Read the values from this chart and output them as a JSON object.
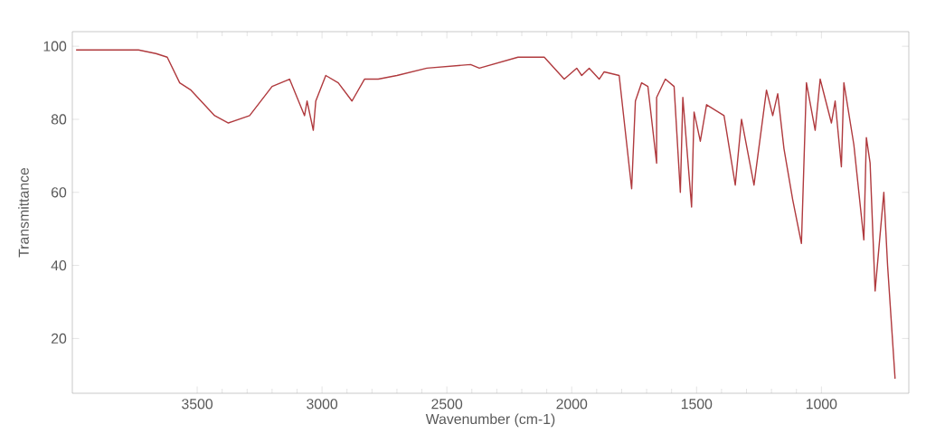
{
  "chart_data": {
    "type": "line",
    "xlabel": "Wavenumber (cm-1)",
    "ylabel": "Transmittance",
    "xlim": [
      4000,
      650
    ],
    "ylim": [
      5,
      104
    ],
    "xticks": [
      3500,
      3000,
      2500,
      2000,
      1500,
      1000
    ],
    "yticks": [
      20,
      40,
      60,
      80,
      100
    ],
    "grid": false,
    "line_style": "solid",
    "series": [
      {
        "color": "#b03a3e",
        "x": [
          3985,
          3735,
          3665,
          3620,
          3570,
          3525,
          3430,
          3375,
          3290,
          3200,
          3130,
          3100,
          3070,
          3060,
          3035,
          3025,
          2985,
          2935,
          2880,
          2830,
          2775,
          2700,
          2580,
          2405,
          2370,
          2215,
          2110,
          2030,
          1980,
          1960,
          1930,
          1890,
          1870,
          1810,
          1760,
          1745,
          1720,
          1695,
          1660,
          1660,
          1625,
          1590,
          1565,
          1555,
          1520,
          1510,
          1485,
          1460,
          1390,
          1345,
          1320,
          1270,
          1220,
          1195,
          1175,
          1150,
          1115,
          1080,
          1060,
          1025,
          1005,
          960,
          945,
          920,
          910,
          870,
          830,
          820,
          805,
          785,
          750,
          735,
          705
        ],
        "values": [
          99,
          99,
          98,
          97,
          90,
          88,
          81,
          79,
          81,
          89,
          91,
          86,
          81,
          85,
          77,
          85,
          92,
          90,
          85,
          91,
          91,
          92,
          94,
          95,
          94,
          97,
          97,
          91,
          94,
          92,
          94,
          91,
          93,
          92,
          61,
          85,
          90,
          89,
          68,
          86,
          91,
          89,
          60,
          86,
          56,
          82,
          74,
          84,
          81,
          62,
          80,
          62,
          88,
          81,
          87,
          72,
          58,
          46,
          90,
          77,
          91,
          79,
          85,
          67,
          90,
          73,
          47,
          75,
          68,
          33,
          60,
          40,
          9
        ]
      }
    ]
  }
}
